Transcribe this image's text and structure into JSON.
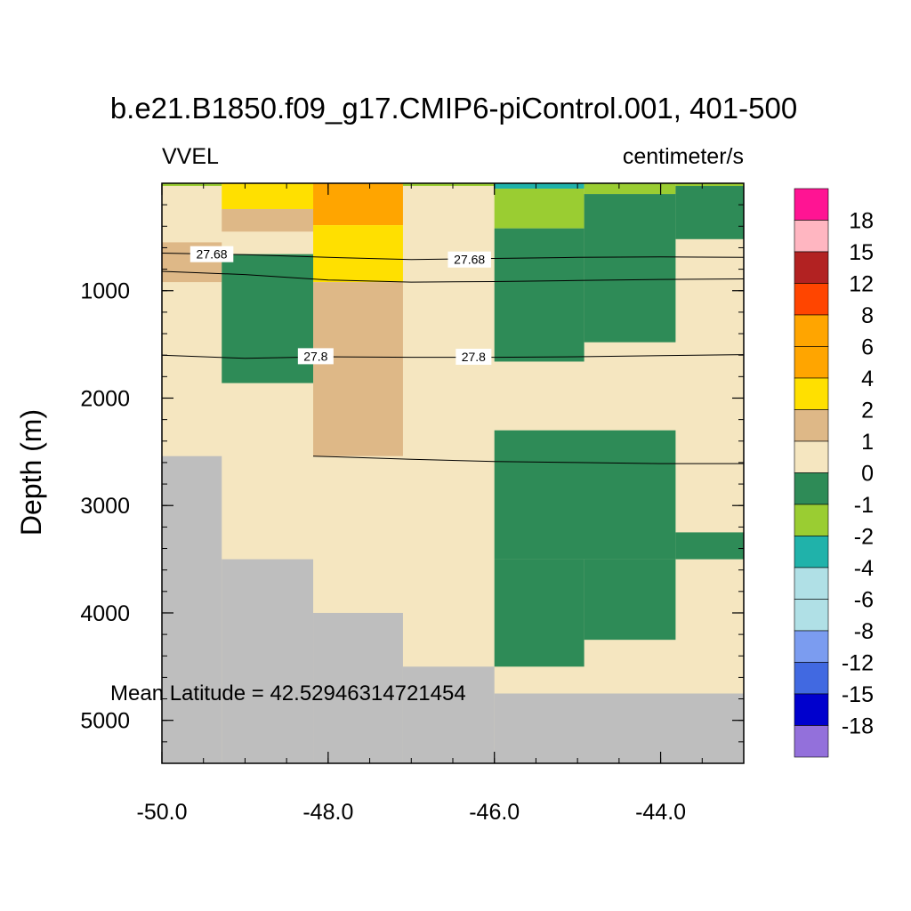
{
  "chart_data": {
    "type": "heatmap",
    "title": "b.e21.B1850.f09_g17.CMIP6-piControl.001, 401-500",
    "left_label": "VVEL",
    "units": "centimeter/s",
    "ylabel": "Depth (m)",
    "xlabel": "",
    "xlim": [
      -50.0,
      -43.0
    ],
    "ylim": [
      0,
      5400
    ],
    "y_reversed": true,
    "xticks": [
      -50.0,
      -48.0,
      -46.0,
      -44.0
    ],
    "xtick_labels": [
      "-50.0",
      "-48.0",
      "-46.0",
      "-44.0"
    ],
    "yticks": [
      1000,
      2000,
      3000,
      4000,
      5000
    ],
    "ytick_labels": [
      "1000",
      "2000",
      "3000",
      "4000",
      "5000"
    ],
    "annotation": "Mean Latitude = 42.52946314721454",
    "colorbar": {
      "labels": [
        "18",
        "15",
        "12",
        "8",
        "6",
        "4",
        "2",
        "1",
        "0",
        "-1",
        "-2",
        "-4",
        "-6",
        "-8",
        "-12",
        "-15",
        "-18"
      ],
      "colors": [
        "#ff1493",
        "#ffb6c1",
        "#b22222",
        "#ff4500",
        "#ffa500",
        "#ffa500",
        "#ffe000",
        "#deb887",
        "#f5e6c0",
        "#2e8b57",
        "#9acd32",
        "#20b2aa",
        "#b0e0e6",
        "#b0e0e6",
        "#7b9cf0",
        "#4169e1",
        "#0000cd",
        "#9370db"
      ]
    },
    "cells": [
      {
        "x": [
          -50.0,
          -49.28
        ],
        "y": [
          0,
          25
        ],
        "value": -1
      },
      {
        "x": [
          -49.28,
          -48.18
        ],
        "y": [
          0,
          240
        ],
        "value": 3
      },
      {
        "x": [
          -49.28,
          -48.18
        ],
        "y": [
          240,
          450
        ],
        "value": 1.5
      },
      {
        "x": [
          -48.18,
          -47.1
        ],
        "y": [
          0,
          390
        ],
        "value": 5
      },
      {
        "x": [
          -48.18,
          -47.1
        ],
        "y": [
          390,
          920
        ],
        "value": 3
      },
      {
        "x": [
          -48.18,
          -47.1
        ],
        "y": [
          920,
          2540
        ],
        "value": 1.5
      },
      {
        "x": [
          -47.1,
          -46.0
        ],
        "y": [
          0,
          25
        ],
        "value": -1
      },
      {
        "x": [
          -46.0,
          -44.92
        ],
        "y": [
          0,
          50
        ],
        "value": -3
      },
      {
        "x": [
          -46.0,
          -44.92
        ],
        "y": [
          50,
          420
        ],
        "value": -1.5
      },
      {
        "x": [
          -46.0,
          -44.92
        ],
        "y": [
          420,
          1660
        ],
        "value": -0.5
      },
      {
        "x": [
          -44.92,
          -43.82
        ],
        "y": [
          0,
          100
        ],
        "value": -1.5
      },
      {
        "x": [
          -44.92,
          -43.82
        ],
        "y": [
          100,
          1480
        ],
        "value": -0.5
      },
      {
        "x": [
          -43.82,
          -43.0
        ],
        "y": [
          0,
          25
        ],
        "value": -1
      },
      {
        "x": [
          -43.82,
          -43.0
        ],
        "y": [
          25,
          520
        ],
        "value": -0.5
      },
      {
        "x": [
          -50.0,
          -49.28
        ],
        "y": [
          550,
          920
        ],
        "value": 1.5
      },
      {
        "x": [
          -49.28,
          -48.18
        ],
        "y": [
          660,
          1860
        ],
        "value": -0.5
      },
      {
        "x": [
          -46.0,
          -43.82
        ],
        "y": [
          2300,
          3500
        ],
        "value": -0.5
      },
      {
        "x": [
          -43.82,
          -43.0
        ],
        "y": [
          3250,
          3500
        ],
        "value": -0.5
      },
      {
        "x": [
          -46.0,
          -44.92
        ],
        "y": [
          3500,
          4500
        ],
        "value": -0.5
      },
      {
        "x": [
          -44.92,
          -43.82
        ],
        "y": [
          3500,
          4250
        ],
        "value": -0.5
      }
    ],
    "land": [
      {
        "x": [
          -50.0,
          -49.28
        ],
        "y": [
          2540,
          5400
        ]
      },
      {
        "x": [
          -49.28,
          -48.18
        ],
        "y": [
          3500,
          5400
        ]
      },
      {
        "x": [
          -48.18,
          -47.1
        ],
        "y": [
          4000,
          5400
        ]
      },
      {
        "x": [
          -47.1,
          -46.0
        ],
        "y": [
          4500,
          5400
        ]
      },
      {
        "x": [
          -46.0,
          -43.0
        ],
        "y": [
          4750,
          5400
        ]
      }
    ],
    "contours": [
      {
        "label": "27.68",
        "points": [
          [
            -50.0,
            650
          ],
          [
            -49.0,
            665
          ],
          [
            -48.0,
            690
          ],
          [
            -47.0,
            710
          ],
          [
            -46.0,
            700
          ],
          [
            -45.0,
            690
          ],
          [
            -44.0,
            685
          ],
          [
            -43.0,
            690
          ]
        ],
        "label_at": [
          [
            -49.4,
            660
          ],
          [
            -46.3,
            710
          ]
        ]
      },
      {
        "label": "",
        "points": [
          [
            -50.0,
            820
          ],
          [
            -49.0,
            850
          ],
          [
            -48.0,
            900
          ],
          [
            -47.0,
            920
          ],
          [
            -46.0,
            915
          ],
          [
            -45.0,
            905
          ],
          [
            -44.0,
            895
          ],
          [
            -43.0,
            890
          ]
        ],
        "label_at": []
      },
      {
        "label": "27.8",
        "points": [
          [
            -50.0,
            1600
          ],
          [
            -49.0,
            1630
          ],
          [
            -48.0,
            1615
          ],
          [
            -47.0,
            1620
          ],
          [
            -46.0,
            1620
          ],
          [
            -45.0,
            1615
          ],
          [
            -44.0,
            1605
          ],
          [
            -43.0,
            1595
          ]
        ],
        "label_at": [
          [
            -48.15,
            1610
          ],
          [
            -46.25,
            1615
          ]
        ]
      },
      {
        "label": "",
        "points": [
          [
            -48.18,
            2540
          ],
          [
            -47.0,
            2570
          ],
          [
            -46.0,
            2590
          ],
          [
            -45.0,
            2600
          ],
          [
            -44.0,
            2610
          ],
          [
            -43.0,
            2610
          ]
        ],
        "label_at": []
      }
    ]
  }
}
